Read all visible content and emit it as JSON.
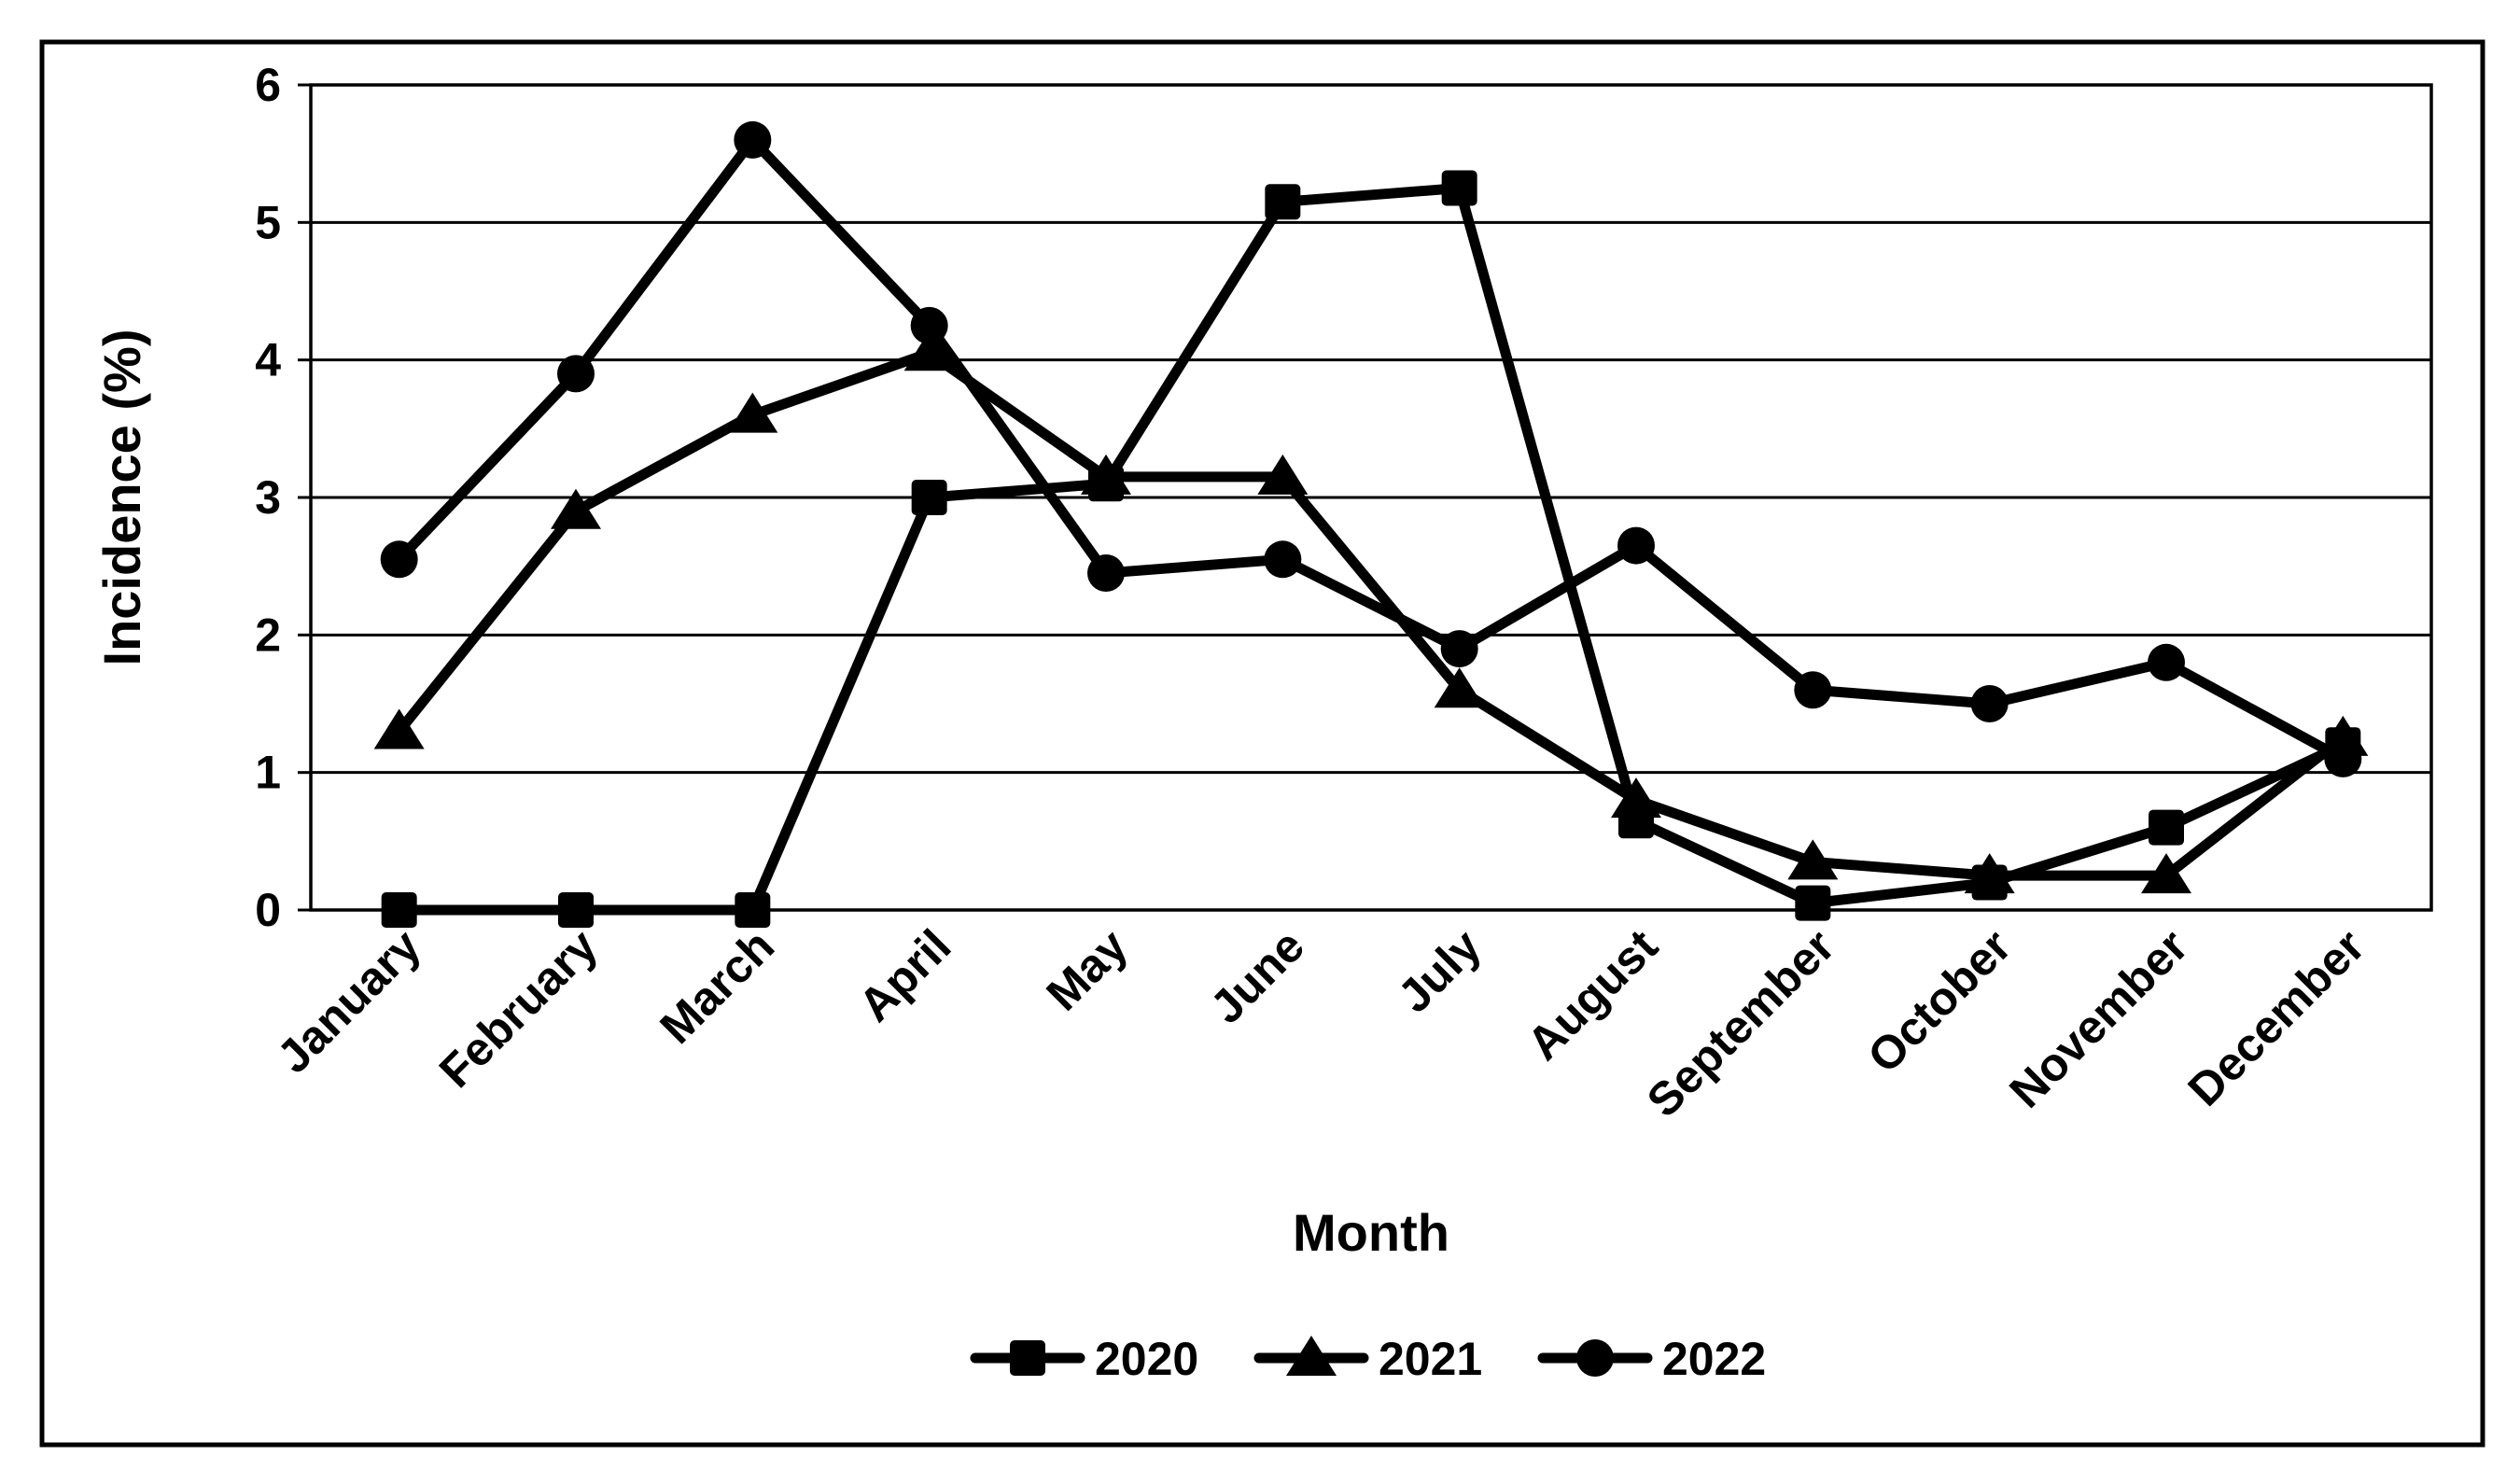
{
  "figure": {
    "background_color": "#ffffff",
    "border_color": "#000000",
    "line_color": "#000000"
  },
  "chart_data": {
    "type": "line",
    "title": "",
    "xlabel": "Month",
    "ylabel": "Incidence (%)",
    "categories": [
      "January",
      "February",
      "March",
      "April",
      "May",
      "June",
      "July",
      "August",
      "September",
      "October",
      "November",
      "December"
    ],
    "series": [
      {
        "name": "2020",
        "marker": "square",
        "values": [
          0,
          0,
          0,
          3.0,
          3.1,
          5.15,
          5.25,
          0.65,
          0.05,
          0.2,
          0.6,
          1.2
        ]
      },
      {
        "name": "2021",
        "marker": "triangle",
        "values": [
          1.3,
          2.9,
          3.6,
          4.05,
          3.15,
          3.15,
          1.6,
          0.8,
          0.35,
          0.25,
          0.25,
          1.25
        ]
      },
      {
        "name": "2022",
        "marker": "circle",
        "values": [
          2.55,
          3.9,
          5.6,
          4.25,
          2.45,
          2.55,
          1.9,
          2.65,
          1.6,
          1.5,
          1.8,
          1.1
        ]
      }
    ],
    "ylim": [
      0,
      6
    ],
    "yticks": [
      0,
      1,
      2,
      3,
      4,
      5,
      6
    ],
    "grid": "horizontal",
    "legend_position": "bottom-center",
    "legend_labels": [
      "2020",
      "2021",
      "2022"
    ]
  }
}
